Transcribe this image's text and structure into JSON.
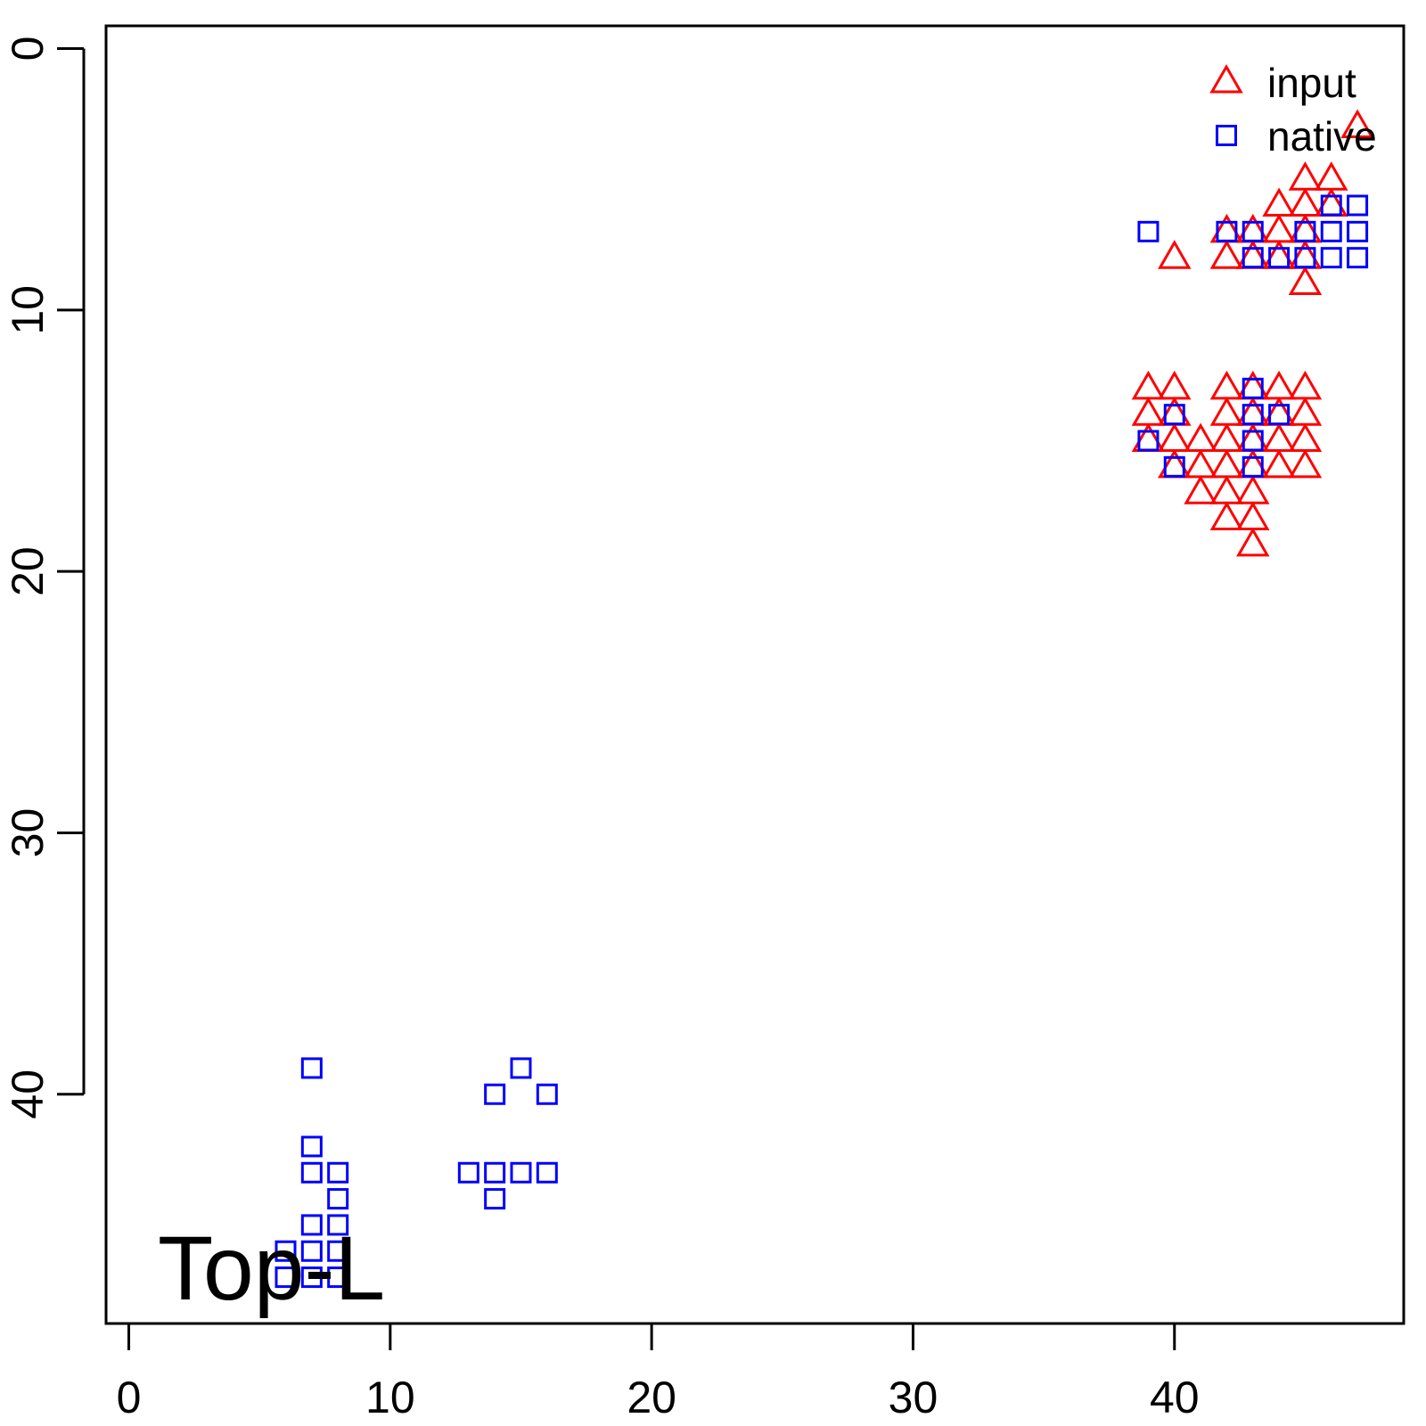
{
  "chart_data": {
    "type": "scatter",
    "title": "",
    "xlabel": "",
    "ylabel": "",
    "xlim": [
      -0.87,
      48.77
    ],
    "ylim": [
      -0.87,
      48.77
    ],
    "y_reversed": true,
    "grid": false,
    "x_ticks": [
      0,
      10,
      20,
      30,
      40
    ],
    "y_ticks": [
      0,
      10,
      20,
      30,
      40
    ],
    "x_tick_labels": [
      "0",
      "10",
      "20",
      "30",
      "40"
    ],
    "y_tick_labels": [
      "0",
      "10",
      "20",
      "30",
      "40"
    ],
    "legend_position": "top-right",
    "annotation": "Top-L",
    "series": [
      {
        "name": "input",
        "marker": "triangle",
        "color": "#ff0000",
        "points": [
          [
            47,
            3
          ],
          [
            45,
            5
          ],
          [
            46,
            5
          ],
          [
            44,
            6
          ],
          [
            45,
            6
          ],
          [
            46,
            6
          ],
          [
            42,
            7
          ],
          [
            43,
            7
          ],
          [
            44,
            7
          ],
          [
            45,
            7
          ],
          [
            40,
            8
          ],
          [
            42,
            8
          ],
          [
            43,
            8
          ],
          [
            44,
            8
          ],
          [
            45,
            8
          ],
          [
            45,
            9
          ],
          [
            39,
            13
          ],
          [
            40,
            13
          ],
          [
            42,
            13
          ],
          [
            43,
            13
          ],
          [
            44,
            13
          ],
          [
            45,
            13
          ],
          [
            39,
            14
          ],
          [
            40,
            14
          ],
          [
            42,
            14
          ],
          [
            43,
            14
          ],
          [
            44,
            14
          ],
          [
            45,
            14
          ],
          [
            39,
            15
          ],
          [
            40,
            15
          ],
          [
            41,
            15
          ],
          [
            42,
            15
          ],
          [
            43,
            15
          ],
          [
            44,
            15
          ],
          [
            45,
            15
          ],
          [
            40,
            16
          ],
          [
            41,
            16
          ],
          [
            42,
            16
          ],
          [
            43,
            16
          ],
          [
            44,
            16
          ],
          [
            45,
            16
          ],
          [
            41,
            17
          ],
          [
            42,
            17
          ],
          [
            43,
            17
          ],
          [
            42,
            18
          ],
          [
            43,
            18
          ],
          [
            43,
            19
          ]
        ]
      },
      {
        "name": "native",
        "marker": "square",
        "color": "#0000ff",
        "points": [
          [
            46,
            6
          ],
          [
            47,
            6
          ],
          [
            39,
            7
          ],
          [
            42,
            7
          ],
          [
            43,
            7
          ],
          [
            45,
            7
          ],
          [
            46,
            7
          ],
          [
            47,
            7
          ],
          [
            43,
            8
          ],
          [
            44,
            8
          ],
          [
            45,
            8
          ],
          [
            46,
            8
          ],
          [
            47,
            8
          ],
          [
            43,
            13
          ],
          [
            40,
            14
          ],
          [
            43,
            14
          ],
          [
            44,
            14
          ],
          [
            39,
            15
          ],
          [
            43,
            15
          ],
          [
            40,
            16
          ],
          [
            43,
            16
          ],
          [
            7,
            39
          ],
          [
            15,
            39
          ],
          [
            14,
            40
          ],
          [
            16,
            40
          ],
          [
            7,
            42
          ],
          [
            7,
            43
          ],
          [
            8,
            43
          ],
          [
            13,
            43
          ],
          [
            14,
            43
          ],
          [
            15,
            43
          ],
          [
            16,
            43
          ],
          [
            8,
            44
          ],
          [
            14,
            44
          ],
          [
            7,
            45
          ],
          [
            8,
            45
          ],
          [
            6,
            46
          ],
          [
            7,
            46
          ],
          [
            8,
            46
          ],
          [
            6,
            47
          ],
          [
            7,
            47
          ],
          [
            8,
            47
          ]
        ]
      }
    ]
  }
}
